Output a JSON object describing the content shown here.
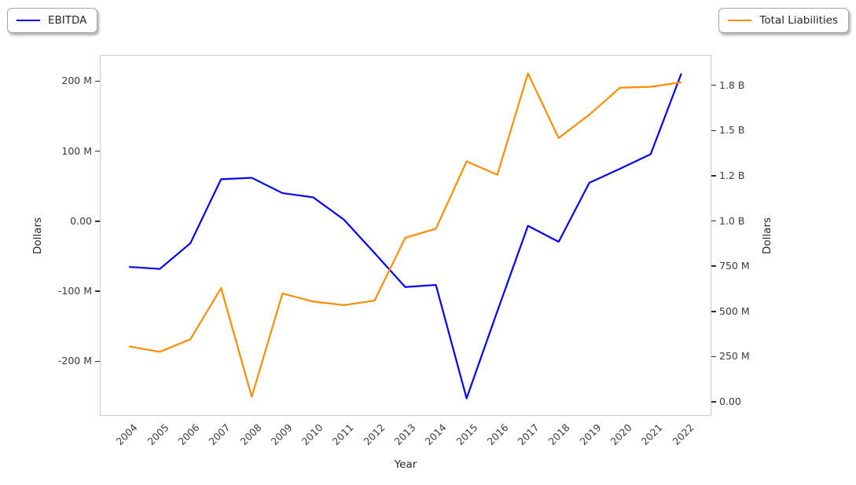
{
  "legend_left": {
    "label": "EBITDA",
    "color": "#0000ff"
  },
  "legend_right": {
    "label": "Total Liabilities",
    "color": "#ff8c00"
  },
  "chart_data": {
    "type": "line",
    "title": "",
    "xlabel": "Year",
    "ylabel_left": "Dollars",
    "ylabel_right": "Dollars",
    "grid": false,
    "legend_positions": [
      "outside-top-left",
      "outside-top-right"
    ],
    "units": "millions_usd",
    "x": [
      2004,
      2005,
      2006,
      2007,
      2008,
      2009,
      2010,
      2011,
      2012,
      2013,
      2014,
      2015,
      2016,
      2017,
      2018,
      2019,
      2020,
      2021,
      2022
    ],
    "series": [
      {
        "name": "EBITDA",
        "axis": "left",
        "color": "#0000ff",
        "values": [
          -66,
          -69,
          -32,
          60,
          62,
          40,
          34,
          2,
          -46,
          -95,
          -92,
          -255,
          -130,
          -7,
          -30,
          55,
          75,
          96,
          212
        ]
      },
      {
        "name": "Total Liabilities",
        "axis": "right",
        "color": "#ff8c00",
        "values": [
          300,
          270,
          340,
          625,
          20,
          595,
          550,
          530,
          555,
          905,
          955,
          1330,
          1255,
          1820,
          1460,
          1590,
          1740,
          1745,
          1770
        ]
      }
    ],
    "xlim": [
      2003.1,
      2022.9
    ],
    "left_axis": {
      "lim": [
        -278,
        237.5
      ],
      "ticks": [
        {
          "value": 200,
          "label": "200 M"
        },
        {
          "value": 100,
          "label": "100 M"
        },
        {
          "value": 0,
          "label": "0.00"
        },
        {
          "value": -100,
          "label": "-100 M"
        },
        {
          "value": -200,
          "label": "-200 M"
        }
      ]
    },
    "right_axis": {
      "lim": [
        -78,
        1918
      ],
      "ticks": [
        {
          "value": 1750,
          "label": "1.8 B"
        },
        {
          "value": 1500,
          "label": "1.5 B"
        },
        {
          "value": 1250,
          "label": "1.2 B"
        },
        {
          "value": 1000,
          "label": "1.0 B"
        },
        {
          "value": 750,
          "label": "750 M"
        },
        {
          "value": 500,
          "label": "500 M"
        },
        {
          "value": 250,
          "label": "250 M"
        },
        {
          "value": 0,
          "label": "0.00"
        }
      ]
    }
  }
}
